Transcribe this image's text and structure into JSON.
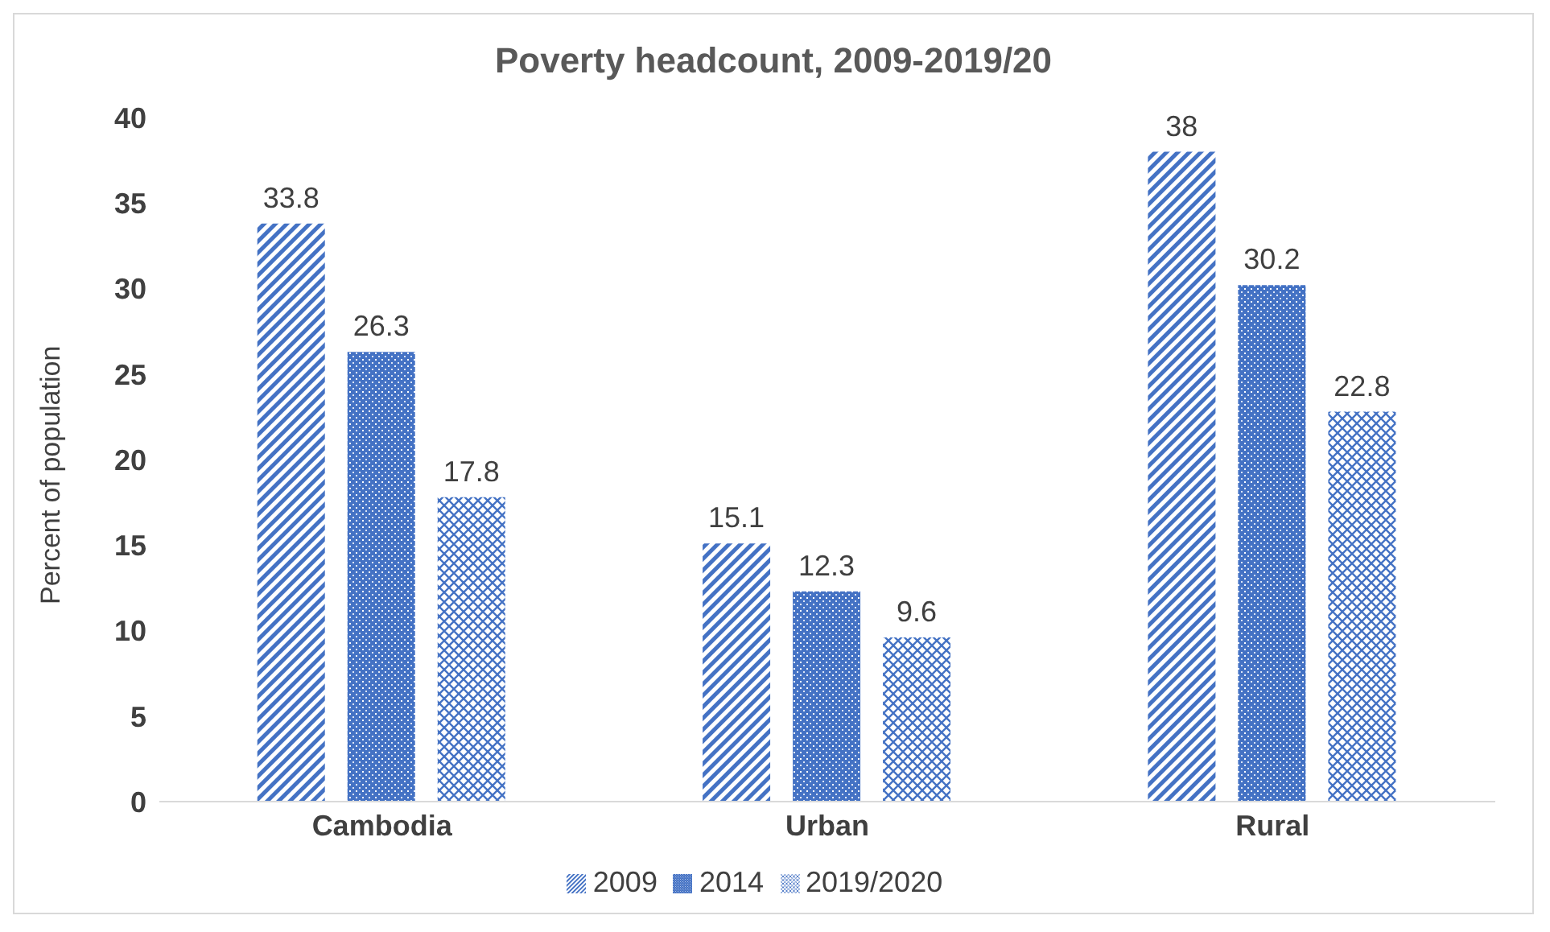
{
  "chart_data": {
    "type": "bar",
    "title": "Poverty headcount, 2009-2019/20",
    "ylabel": "Percent of population",
    "categories": [
      "Cambodia",
      "Urban",
      "Rural"
    ],
    "series": [
      {
        "name": "2009",
        "color": "#4472c4",
        "values": [
          33.8,
          15.1,
          38
        ]
      },
      {
        "name": "2014",
        "color": "#4472c4",
        "values": [
          26.3,
          12.3,
          30.2
        ]
      },
      {
        "name": "2019/2020",
        "color": "#4472c4",
        "values": [
          17.8,
          9.6,
          22.8
        ]
      }
    ],
    "ylim": [
      0,
      40
    ],
    "yticks": [
      0,
      5,
      10,
      15,
      20,
      25,
      30,
      35,
      40
    ],
    "grid": false,
    "legend": "bottom",
    "data_labels": true
  }
}
